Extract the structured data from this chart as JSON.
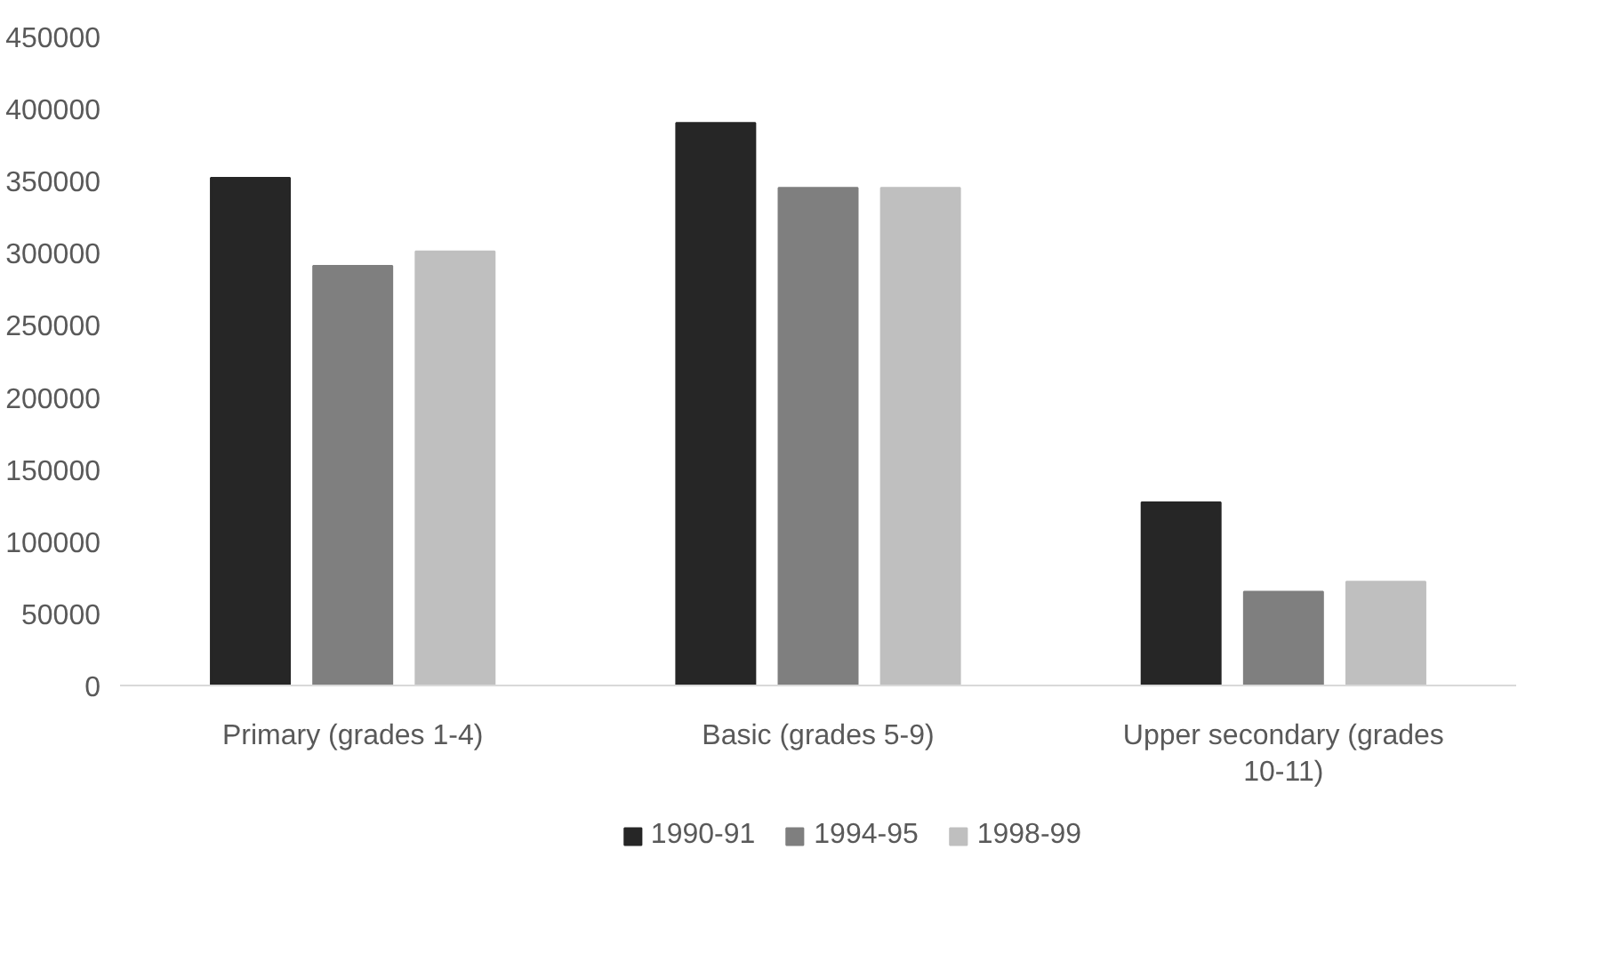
{
  "chart_data": {
    "type": "bar",
    "categories": [
      "Primary (grades 1-4)",
      "Basic (grades 5-9)",
      "Upper secondary (grades 10-11)"
    ],
    "series": [
      {
        "name": "1990-91",
        "color": "#262626",
        "values": [
          352000,
          390000,
          127000
        ]
      },
      {
        "name": "1994-95",
        "color": "#7f7f7f",
        "values": [
          291000,
          345000,
          65000
        ]
      },
      {
        "name": "1998-99",
        "color": "#bfbfbf",
        "values": [
          301000,
          345000,
          72000
        ]
      }
    ],
    "ylim": [
      0,
      450000
    ],
    "yticks": [
      0,
      50000,
      100000,
      150000,
      200000,
      250000,
      300000,
      350000,
      400000,
      450000
    ],
    "grid": false,
    "legend": "bottom"
  }
}
